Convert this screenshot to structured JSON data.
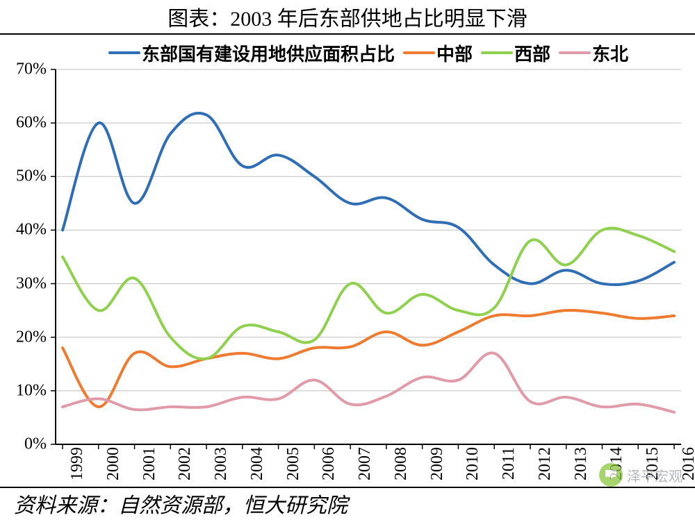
{
  "title": "图表：2003 年后东部供地占比明显下滑",
  "source": "资料来源：自然资源部，恒大研究院",
  "watermark": "泽平宏观",
  "chart": {
    "type": "line",
    "background_color": "#ffffff",
    "grid_color": "#bfbfbf",
    "axis_color": "#000000",
    "line_width": 4,
    "title_fontsize": 30,
    "label_fontsize": 24,
    "legend_fontsize": 26,
    "y": {
      "min": 0,
      "max": 70,
      "tick_step": 10,
      "ticks": [
        0,
        10,
        20,
        30,
        40,
        50,
        60,
        70
      ],
      "tick_labels": [
        "0%",
        "10%",
        "20%",
        "30%",
        "40%",
        "50%",
        "60%",
        "70%"
      ]
    },
    "x": {
      "categories": [
        "1999",
        "2000",
        "2001",
        "2002",
        "2003",
        "2004",
        "2005",
        "2006",
        "2007",
        "2008",
        "2009",
        "2010",
        "2011",
        "2012",
        "2013",
        "2014",
        "2015",
        "2016"
      ]
    },
    "series": [
      {
        "key": "east",
        "label": "东部国有建设用地供应面积占比",
        "color": "#2f6db5",
        "values": [
          40,
          60,
          45,
          58,
          61.5,
          52,
          54,
          50,
          45,
          46,
          42,
          40.5,
          33.5,
          30,
          32.5,
          30,
          30.5,
          34
        ]
      },
      {
        "key": "central",
        "label": "中部",
        "color": "#ee7b30",
        "values": [
          18,
          7,
          17,
          14.5,
          16,
          17,
          16,
          18,
          18.2,
          21,
          18.5,
          21,
          24,
          24,
          25,
          24.5,
          23.5,
          24
        ]
      },
      {
        "key": "west",
        "label": "西部",
        "color": "#8fd14f",
        "values": [
          35,
          25,
          31,
          20,
          16,
          22,
          21,
          19.5,
          30,
          24.5,
          28,
          25,
          25.5,
          38,
          33.5,
          40,
          39,
          36
        ]
      },
      {
        "key": "northeast",
        "label": "东北",
        "color": "#e09aa8",
        "values": [
          7,
          8.5,
          6.5,
          7,
          7,
          8.8,
          8.5,
          12,
          7.5,
          9,
          12.5,
          12,
          17,
          8,
          8.8,
          7,
          7.5,
          6
        ]
      }
    ]
  }
}
